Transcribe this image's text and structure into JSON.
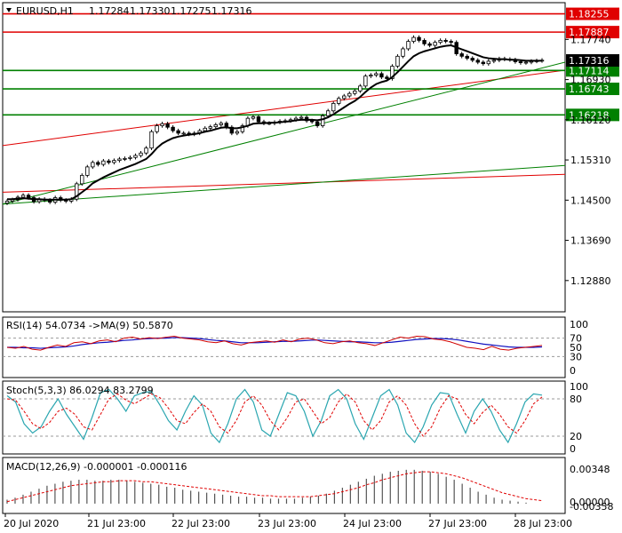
{
  "chart_data": [
    {
      "type": "candlestick",
      "title": "EURUSD,H1",
      "ohlc_header": [
        "1.17284",
        "1.17330",
        "1.17275",
        "1.17316"
      ],
      "current_price": "1.17316",
      "price_ticks": [
        "1.17740",
        "1.16930",
        "1.16120",
        "1.15310",
        "1.14500",
        "1.13690",
        "1.12880"
      ],
      "ylim": [
        1.1225,
        1.1848
      ],
      "time_ticks": [
        "20 Jul 2020",
        "21 Jul 23:00",
        "22 Jul 23:00",
        "23 Jul 23:00",
        "24 Jul 23:00",
        "27 Jul 23:00",
        "28 Jul 23:00"
      ],
      "levels": [
        {
          "label": "1.18255",
          "price": 1.18255,
          "color": "#e00000",
          "kind": "resistance"
        },
        {
          "label": "1.17887",
          "price": 1.17887,
          "color": "#e00000",
          "kind": "resistance"
        },
        {
          "label": "1.17114",
          "price": 1.17114,
          "color": "#008000",
          "kind": "support"
        },
        {
          "label": "1.16743",
          "price": 1.16743,
          "color": "#008000",
          "kind": "support"
        },
        {
          "label": "1.16218",
          "price": 1.16218,
          "color": "#008000",
          "kind": "support"
        }
      ],
      "trendlines": [
        {
          "color": "#e00000",
          "from": [
            0,
            1.156
          ],
          "to": [
            100,
            1.1712
          ]
        },
        {
          "color": "#e00000",
          "from": [
            0,
            1.1466
          ],
          "to": [
            100,
            1.1502
          ]
        },
        {
          "color": "#008000",
          "from": [
            0,
            1.1442
          ],
          "to": [
            100,
            1.1728
          ]
        },
        {
          "color": "#008000",
          "from": [
            0,
            1.1442
          ],
          "to": [
            100,
            1.152
          ]
        }
      ],
      "close_series": [
        1.1448,
        1.1451,
        1.1456,
        1.146,
        1.1455,
        1.1447,
        1.1452,
        1.145,
        1.1446,
        1.1455,
        1.145,
        1.1448,
        1.1452,
        1.1483,
        1.15,
        1.1517,
        1.1526,
        1.1522,
        1.1529,
        1.1526,
        1.153,
        1.1533,
        1.1534,
        1.1536,
        1.154,
        1.1545,
        1.1555,
        1.1588,
        1.16,
        1.1604,
        1.1597,
        1.159,
        1.1585,
        1.1585,
        1.1583,
        1.1585,
        1.159,
        1.1595,
        1.1598,
        1.1602,
        1.1605,
        1.1597,
        1.1585,
        1.1588,
        1.16,
        1.1615,
        1.1618,
        1.1608,
        1.1605,
        1.1605,
        1.1607,
        1.1609,
        1.161,
        1.1612,
        1.1615,
        1.1617,
        1.161,
        1.1608,
        1.16,
        1.162,
        1.163,
        1.1645,
        1.1655,
        1.166,
        1.1665,
        1.167,
        1.168,
        1.17,
        1.1702,
        1.1705,
        1.1698,
        1.1695,
        1.172,
        1.174,
        1.1755,
        1.177,
        1.1778,
        1.1772,
        1.1765,
        1.1762,
        1.1768,
        1.1772,
        1.177,
        1.1768,
        1.1745,
        1.174,
        1.1736,
        1.1732,
        1.1728,
        1.1725,
        1.173,
        1.1732,
        1.1735,
        1.1734,
        1.1733,
        1.1729,
        1.1727,
        1.1728,
        1.173,
        1.1731,
        1.1732
      ],
      "ma_series": [
        1.1452,
        1.1452,
        1.1453,
        1.1454,
        1.1453,
        1.1452,
        1.1452,
        1.1451,
        1.1451,
        1.1451,
        1.1451,
        1.1451,
        1.1452,
        1.1458,
        1.1466,
        1.1474,
        1.1484,
        1.149,
        1.1496,
        1.1501,
        1.1506,
        1.1511,
        1.1515,
        1.1519,
        1.1523,
        1.1528,
        1.1533,
        1.1543,
        1.1555,
        1.1564,
        1.157,
        1.1575,
        1.1578,
        1.158,
        1.1582,
        1.1583,
        1.1585,
        1.1588,
        1.159,
        1.1593,
        1.1596,
        1.1597,
        1.1595,
        1.1595,
        1.1597,
        1.16,
        1.1604,
        1.1605,
        1.1605,
        1.1606,
        1.1606,
        1.1607,
        1.1608,
        1.1609,
        1.1611,
        1.1612,
        1.1612,
        1.1612,
        1.1611,
        1.1613,
        1.1617,
        1.1623,
        1.163,
        1.1637,
        1.1644,
        1.165,
        1.1658,
        1.1668,
        1.1677,
        1.1684,
        1.1688,
        1.1691,
        1.1698,
        1.1708,
        1.1719,
        1.173,
        1.174,
        1.1746,
        1.175,
        1.1753,
        1.1756,
        1.1759,
        1.1761,
        1.1762,
        1.1758,
        1.1754,
        1.175,
        1.1746,
        1.1742,
        1.1738,
        1.1736,
        1.1735,
        1.1734,
        1.1734,
        1.1733,
        1.1733,
        1.1732,
        1.1731,
        1.1731,
        1.1731,
        1.1731
      ]
    },
    {
      "type": "line",
      "title": "RSI(14) 54.0734 ->MA(9) 50.5870",
      "ticks": [
        "100",
        "70",
        "50",
        "30",
        "0"
      ],
      "ylim": [
        0,
        100
      ],
      "rsi": [
        50,
        48,
        52,
        46,
        44,
        50,
        55,
        52,
        60,
        62,
        58,
        64,
        66,
        62,
        70,
        72,
        68,
        71,
        69,
        72,
        74,
        70,
        68,
        66,
        62,
        60,
        64,
        58,
        55,
        60,
        62,
        64,
        61,
        66,
        62,
        68,
        70,
        66,
        60,
        58,
        62,
        64,
        60,
        58,
        54,
        60,
        66,
        72,
        70,
        74,
        73,
        68,
        66,
        62,
        56,
        50,
        48,
        45,
        52,
        46,
        44,
        48,
        50,
        52,
        54
      ],
      "ma": [
        50,
        50,
        49,
        49,
        48,
        49,
        50,
        51,
        53,
        56,
        58,
        60,
        61,
        63,
        65,
        66,
        68,
        69,
        70,
        70,
        71,
        71,
        70,
        69,
        67,
        65,
        64,
        62,
        60,
        60,
        60,
        61,
        62,
        63,
        63,
        64,
        65,
        66,
        65,
        64,
        63,
        62,
        62,
        61,
        60,
        60,
        61,
        63,
        65,
        67,
        68,
        69,
        69,
        68,
        66,
        63,
        60,
        57,
        55,
        53,
        51,
        50,
        50,
        50,
        51
      ],
      "series_names": [
        "RSI",
        "MA"
      ]
    },
    {
      "type": "line",
      "title": "Stoch(5,3,3) 86.0294 83.2799",
      "ticks": [
        "100",
        "80",
        "20",
        "0"
      ],
      "ylim": [
        0,
        100
      ],
      "k": [
        85,
        75,
        40,
        25,
        35,
        60,
        80,
        55,
        35,
        15,
        50,
        90,
        95,
        80,
        60,
        85,
        90,
        92,
        70,
        45,
        30,
        60,
        85,
        70,
        25,
        10,
        40,
        80,
        95,
        75,
        30,
        20,
        55,
        90,
        85,
        60,
        20,
        45,
        85,
        95,
        80,
        40,
        15,
        50,
        85,
        95,
        70,
        25,
        10,
        35,
        70,
        90,
        88,
        55,
        25,
        60,
        80,
        60,
        30,
        10,
        40,
        75,
        88,
        86
      ],
      "d": [
        80,
        78,
        60,
        40,
        32,
        42,
        60,
        65,
        55,
        35,
        30,
        55,
        80,
        88,
        78,
        72,
        80,
        88,
        82,
        65,
        45,
        40,
        58,
        72,
        60,
        35,
        25,
        45,
        75,
        85,
        70,
        45,
        30,
        50,
        75,
        80,
        60,
        40,
        50,
        75,
        88,
        75,
        45,
        30,
        45,
        75,
        85,
        70,
        40,
        20,
        35,
        65,
        85,
        80,
        55,
        40,
        58,
        70,
        55,
        35,
        25,
        45,
        72,
        83
      ]
    },
    {
      "type": "bar",
      "title": "MACD(12,26,9) -0.000001 -0.000116",
      "ticks": [
        "0.00348",
        "0.00000",
        "-0.00358"
      ],
      "ylim": [
        -0.00045,
        0.0041
      ],
      "histogram": [
        0.0004,
        0.0006,
        0.0009,
        0.0012,
        0.0015,
        0.0018,
        0.002,
        0.0022,
        0.0023,
        0.0024,
        0.0024,
        0.0023,
        0.0023,
        0.0024,
        0.0024,
        0.0023,
        0.0022,
        0.0021,
        0.002,
        0.0019,
        0.0017,
        0.0016,
        0.0014,
        0.0013,
        0.0012,
        0.0011,
        0.001,
        0.0009,
        0.0008,
        0.0007,
        0.0007,
        0.0006,
        0.0006,
        0.0005,
        0.0005,
        0.0005,
        0.0005,
        0.0006,
        0.0007,
        0.0008,
        0.001,
        0.0013,
        0.0016,
        0.0019,
        0.0022,
        0.0025,
        0.0028,
        0.003,
        0.0032,
        0.0033,
        0.0034,
        0.0034,
        0.0033,
        0.0032,
        0.003,
        0.0027,
        0.0024,
        0.002,
        0.0016,
        0.0012,
        0.0009,
        0.0006,
        0.0004,
        0.0003,
        0.0002,
        0.0001,
        0.0,
        0.0
      ],
      "signal": [
        0.0002,
        0.0004,
        0.0006,
        0.0008,
        0.001,
        0.0012,
        0.0014,
        0.0016,
        0.0018,
        0.0019,
        0.002,
        0.0021,
        0.0022,
        0.0022,
        0.0023,
        0.0023,
        0.0023,
        0.0022,
        0.0022,
        0.0021,
        0.002,
        0.0019,
        0.0018,
        0.0017,
        0.0016,
        0.0015,
        0.0014,
        0.0013,
        0.0012,
        0.0011,
        0.001,
        0.0009,
        0.0008,
        0.0008,
        0.0007,
        0.0007,
        0.0007,
        0.0007,
        0.0007,
        0.0008,
        0.0009,
        0.001,
        0.0012,
        0.0014,
        0.0016,
        0.0019,
        0.0021,
        0.0024,
        0.0026,
        0.0028,
        0.003,
        0.0031,
        0.0032,
        0.0032,
        0.0031,
        0.003,
        0.0028,
        0.0026,
        0.0023,
        0.002,
        0.0017,
        0.0014,
        0.0011,
        0.0009,
        0.0007,
        0.0005,
        0.0004,
        0.0003
      ]
    }
  ]
}
